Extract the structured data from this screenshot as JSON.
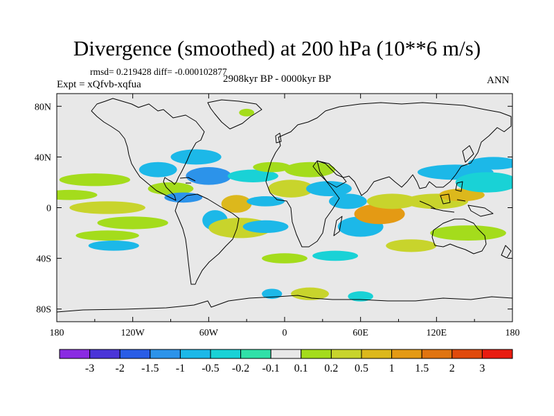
{
  "title": "Divergence (smoothed) at 200 hPa (10**6 m/s)",
  "stats_line": "rmsd= 0.219428 diff= -0.000102877",
  "experiment_line": "Expt = xQfvb-xqfua",
  "period_line": "2908kyr BP - 0000kyr BP",
  "season_label": "ANN",
  "lon_ticks": [
    {
      "value": -180,
      "label": "180"
    },
    {
      "value": -120,
      "label": "120W"
    },
    {
      "value": -60,
      "label": "60W"
    },
    {
      "value": 0,
      "label": "0"
    },
    {
      "value": 60,
      "label": "60E"
    },
    {
      "value": 120,
      "label": "120E"
    },
    {
      "value": 180,
      "label": "180"
    }
  ],
  "lat_ticks": [
    {
      "value": 80,
      "label": "80N"
    },
    {
      "value": 40,
      "label": "40N"
    },
    {
      "value": 0,
      "label": "0"
    },
    {
      "value": -40,
      "label": "40S"
    },
    {
      "value": -80,
      "label": "80S"
    }
  ],
  "colorbar": {
    "colors": [
      "#8a2be2",
      "#4a34d8",
      "#2a5de6",
      "#2c93ea",
      "#1cb8e8",
      "#19d2d6",
      "#30e0a8",
      "#e8e8e8",
      "#a4dc1c",
      "#c8d42c",
      "#dcb81c",
      "#e49a14",
      "#e07410",
      "#e04a0c",
      "#e81c10"
    ],
    "labels": [
      "-3",
      "-2",
      "-1.5",
      "-1",
      "-0.5",
      "-0.2",
      "-0.1",
      "0.1",
      "0.2",
      "0.5",
      "1",
      "1.5",
      "2",
      "3"
    ]
  },
  "color_scheme": {
    "background": "#e8e8e8",
    "coast": "#000000"
  },
  "field_features": [
    {
      "lon": -150,
      "lat": 22,
      "rx": 28,
      "ry": 5,
      "level": 0.2
    },
    {
      "lon": -170,
      "lat": 10,
      "rx": 22,
      "ry": 4,
      "level": 0.2
    },
    {
      "lon": -140,
      "lat": 0,
      "rx": 30,
      "ry": 5,
      "level": 0.5
    },
    {
      "lon": -120,
      "lat": -12,
      "rx": 28,
      "ry": 5,
      "level": 0.2
    },
    {
      "lon": -140,
      "lat": -22,
      "rx": 25,
      "ry": 4,
      "level": 0.2
    },
    {
      "lon": -135,
      "lat": -30,
      "rx": 20,
      "ry": 4,
      "level": -0.5
    },
    {
      "lon": -100,
      "lat": 30,
      "rx": 15,
      "ry": 6,
      "level": -0.5
    },
    {
      "lon": -70,
      "lat": 40,
      "rx": 20,
      "ry": 6,
      "level": -0.5
    },
    {
      "lon": -90,
      "lat": 15,
      "rx": 18,
      "ry": 5,
      "level": 0.2
    },
    {
      "lon": -80,
      "lat": 8,
      "rx": 15,
      "ry": 4,
      "level": -1
    },
    {
      "lon": -60,
      "lat": 25,
      "rx": 18,
      "ry": 7,
      "level": -1
    },
    {
      "lon": -38,
      "lat": 3,
      "rx": 12,
      "ry": 7,
      "level": 1
    },
    {
      "lon": -55,
      "lat": -10,
      "rx": 10,
      "ry": 8,
      "level": -0.5
    },
    {
      "lon": -35,
      "lat": -16,
      "rx": 25,
      "ry": 8,
      "level": 0.5
    },
    {
      "lon": -15,
      "lat": -15,
      "rx": 18,
      "ry": 5,
      "level": -0.5
    },
    {
      "lon": -25,
      "lat": 25,
      "rx": 20,
      "ry": 5,
      "level": -0.2
    },
    {
      "lon": -10,
      "lat": 32,
      "rx": 15,
      "ry": 4,
      "level": 0.2
    },
    {
      "lon": -15,
      "lat": 5,
      "rx": 15,
      "ry": 4,
      "level": -0.5
    },
    {
      "lon": 5,
      "lat": 15,
      "rx": 18,
      "ry": 7,
      "level": 0.5
    },
    {
      "lon": 20,
      "lat": 30,
      "rx": 20,
      "ry": 6,
      "level": 0.2
    },
    {
      "lon": 35,
      "lat": 15,
      "rx": 18,
      "ry": 6,
      "level": -0.5
    },
    {
      "lon": 50,
      "lat": 5,
      "rx": 15,
      "ry": 6,
      "level": -0.5
    },
    {
      "lon": 60,
      "lat": -15,
      "rx": 18,
      "ry": 8,
      "level": -0.5
    },
    {
      "lon": 75,
      "lat": -5,
      "rx": 20,
      "ry": 8,
      "level": 1.5
    },
    {
      "lon": 85,
      "lat": 5,
      "rx": 20,
      "ry": 6,
      "level": 0.5
    },
    {
      "lon": 120,
      "lat": 5,
      "rx": 25,
      "ry": 6,
      "level": 0.5
    },
    {
      "lon": 140,
      "lat": 10,
      "rx": 18,
      "ry": 5,
      "level": 1
    },
    {
      "lon": 135,
      "lat": 28,
      "rx": 30,
      "ry": 6,
      "level": -0.5
    },
    {
      "lon": 160,
      "lat": 20,
      "rx": 25,
      "ry": 8,
      "level": -0.2
    },
    {
      "lon": 165,
      "lat": 35,
      "rx": 20,
      "ry": 5,
      "level": -0.5
    },
    {
      "lon": 100,
      "lat": -30,
      "rx": 20,
      "ry": 5,
      "level": 0.5
    },
    {
      "lon": 145,
      "lat": -20,
      "rx": 30,
      "ry": 6,
      "level": 0.2
    },
    {
      "lon": 40,
      "lat": -38,
      "rx": 18,
      "ry": 4,
      "level": -0.2
    },
    {
      "lon": 0,
      "lat": -40,
      "rx": 18,
      "ry": 4,
      "level": 0.2
    },
    {
      "lon": -10,
      "lat": -68,
      "rx": 8,
      "ry": 4,
      "level": -0.5
    },
    {
      "lon": 20,
      "lat": -68,
      "rx": 15,
      "ry": 5,
      "level": 0.5
    },
    {
      "lon": 60,
      "lat": -70,
      "rx": 10,
      "ry": 4,
      "level": -0.2
    },
    {
      "lon": -30,
      "lat": 75,
      "rx": 6,
      "ry": 3,
      "level": 0.2
    }
  ]
}
